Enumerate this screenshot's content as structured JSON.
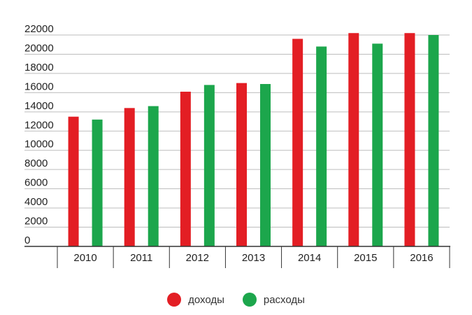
{
  "chart_data": {
    "type": "bar",
    "categories": [
      "2010",
      "2011",
      "2012",
      "2013",
      "2014",
      "2015",
      "2016"
    ],
    "series": [
      {
        "name": "доходы",
        "color": "#e31e24",
        "values": [
          13500,
          14400,
          16100,
          17000,
          21600,
          22200,
          22200
        ]
      },
      {
        "name": "расходы",
        "color": "#1ca64c",
        "values": [
          13200,
          14600,
          16800,
          16900,
          20800,
          21100,
          22000
        ]
      }
    ],
    "yticks": [
      0,
      2000,
      4000,
      6000,
      8000,
      10000,
      12000,
      14000,
      16000,
      18000,
      20000,
      22000
    ],
    "ylim": [
      0,
      22000
    ],
    "grid": true,
    "legend_position": "bottom-center"
  }
}
